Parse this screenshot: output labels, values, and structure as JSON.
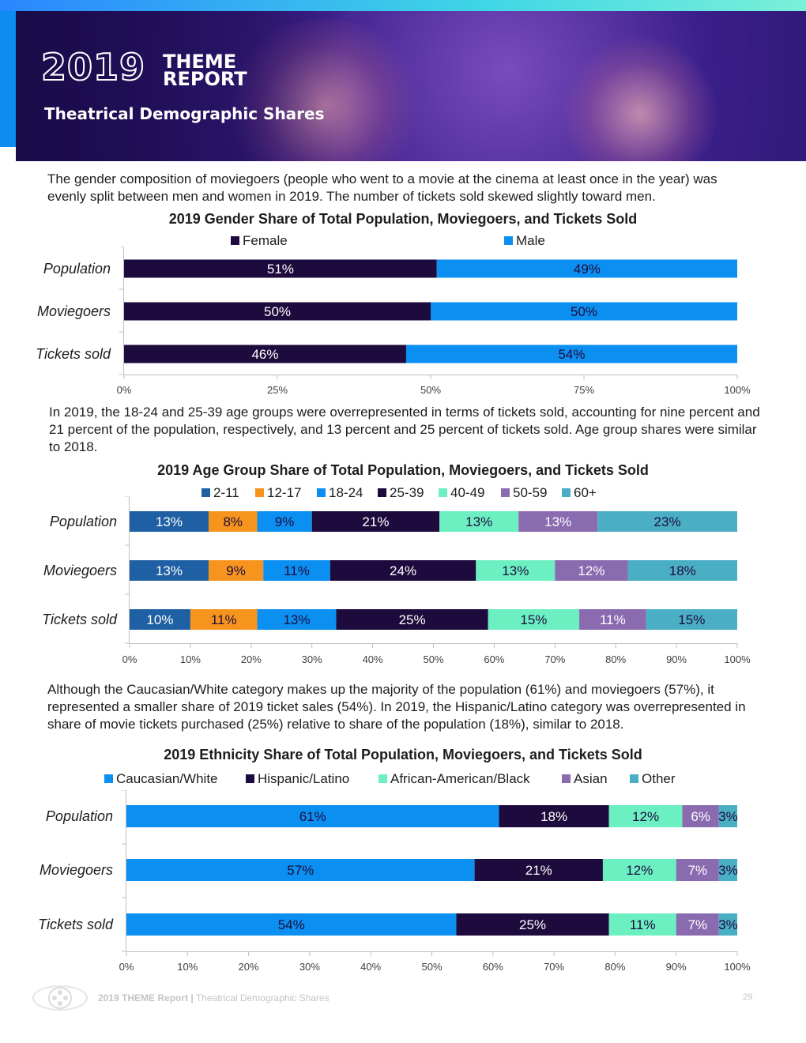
{
  "header": {
    "year": "2019",
    "report_word1": "THEME",
    "report_word2": "REPORT",
    "subtitle": "Theatrical Demographic Shares"
  },
  "paragraphs": {
    "gender": "The gender composition of moviegoers (people who went to a movie at the cinema at least once in the year) was evenly split between men and women in 2019. The number of tickets sold skewed slightly toward men.",
    "age": "In 2019, the 18-24 and 25-39 age groups were overrepresented in terms of tickets sold, accounting for nine percent and 21 percent of the population, respectively, and 13 percent and 25 percent of tickets sold. Age group shares were similar to 2018.",
    "ethnicity": "Although the Caucasian/White category makes up the majority of the population (61%) and moviegoers (57%), it represented a smaller share of 2019 ticket sales (54%). In 2019, the Hispanic/Latino category was overrepresented in share of movie tickets purchased (25%) relative to share of the population (18%), similar to 2018."
  },
  "colors": {
    "dark_navy": "#1e0b3d",
    "bright_blue": "#0b8ff0",
    "steel_blue": "#1f5fa3",
    "orange": "#f7941d",
    "mint": "#6cf0c2",
    "purple": "#8a6bb0",
    "teal": "#4aaec4"
  },
  "chart_data": [
    {
      "type": "bar",
      "orientation": "horizontal-stacked",
      "title": "2019 Gender Share of Total Population, Moviegoers, and Tickets Sold",
      "categories": [
        "Population",
        "Moviegoers",
        "Tickets sold"
      ],
      "series": [
        {
          "name": "Female",
          "color": "#1e0b3d",
          "label_color": "#ffffff",
          "values": [
            51,
            50,
            46
          ]
        },
        {
          "name": "Male",
          "color": "#0b8ff0",
          "label_color": "#1e0b3d",
          "values": [
            49,
            50,
            54
          ]
        }
      ],
      "xticks": [
        "0%",
        "25%",
        "50%",
        "75%",
        "100%"
      ],
      "xlim": [
        0,
        100
      ]
    },
    {
      "type": "bar",
      "orientation": "horizontal-stacked",
      "title": "2019 Age Group Share of Total Population, Moviegoers, and Tickets Sold",
      "categories": [
        "Population",
        "Moviegoers",
        "Tickets sold"
      ],
      "series": [
        {
          "name": "2-11",
          "color": "#1f5fa3",
          "label_color": "#ffffff",
          "values": [
            13,
            13,
            10
          ]
        },
        {
          "name": "12-17",
          "color": "#f7941d",
          "label_color": "#1e0b3d",
          "values": [
            8,
            9,
            11
          ]
        },
        {
          "name": "18-24",
          "color": "#0b8ff0",
          "label_color": "#1e0b3d",
          "values": [
            9,
            11,
            13
          ]
        },
        {
          "name": "25-39",
          "color": "#1e0b3d",
          "label_color": "#ffffff",
          "values": [
            21,
            24,
            25
          ]
        },
        {
          "name": "40-49",
          "color": "#6cf0c2",
          "label_color": "#1e0b3d",
          "values": [
            13,
            13,
            15
          ]
        },
        {
          "name": "50-59",
          "color": "#8a6bb0",
          "label_color": "#ffffff",
          "values": [
            13,
            12,
            11
          ]
        },
        {
          "name": "60+",
          "color": "#4aaec4",
          "label_color": "#1e0b3d",
          "values": [
            23,
            18,
            15
          ]
        }
      ],
      "xticks": [
        "0%",
        "10%",
        "20%",
        "30%",
        "40%",
        "50%",
        "60%",
        "70%",
        "80%",
        "90%",
        "100%"
      ],
      "xlim": [
        0,
        100
      ]
    },
    {
      "type": "bar",
      "orientation": "horizontal-stacked",
      "title": "2019 Ethnicity Share of Total Population, Moviegoers, and Tickets Sold",
      "categories": [
        "Population",
        "Moviegoers",
        "Tickets sold"
      ],
      "series": [
        {
          "name": "Caucasian/White",
          "color": "#0b8ff0",
          "label_color": "#1e0b3d",
          "values": [
            61,
            57,
            54
          ]
        },
        {
          "name": "Hispanic/Latino",
          "color": "#1e0b3d",
          "label_color": "#ffffff",
          "values": [
            18,
            21,
            25
          ]
        },
        {
          "name": "African-American/Black",
          "color": "#6cf0c2",
          "label_color": "#1e0b3d",
          "values": [
            12,
            12,
            11
          ]
        },
        {
          "name": "Asian",
          "color": "#8a6bb0",
          "label_color": "#ffffff",
          "values": [
            6,
            7,
            7
          ]
        },
        {
          "name": "Other",
          "color": "#4aaec4",
          "label_color": "#1e0b3d",
          "values": [
            3,
            3,
            3
          ]
        }
      ],
      "xticks": [
        "0%",
        "10%",
        "20%",
        "30%",
        "40%",
        "50%",
        "60%",
        "70%",
        "80%",
        "90%",
        "100%"
      ],
      "xlim": [
        0,
        100
      ]
    }
  ],
  "footer": {
    "report": "2019 THEME Report",
    "separator": "|",
    "section": "Theatrical Demographic Shares",
    "page": "29"
  }
}
